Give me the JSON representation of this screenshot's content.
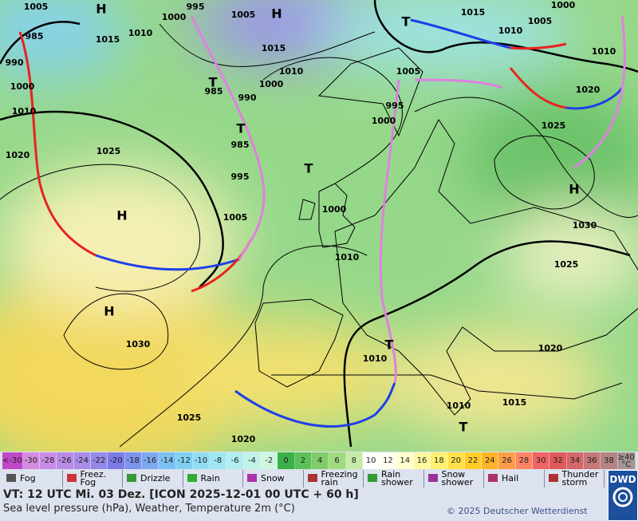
{
  "map": {
    "labels": [
      "H",
      "1005",
      "995",
      "1005",
      "H",
      "1000",
      "1015",
      "1005",
      "1000",
      "T",
      "1010",
      "1010",
      "1015",
      "1010",
      "985",
      "1015",
      "1010",
      "1005",
      "1000",
      "T",
      "985",
      "990",
      "1020",
      "995",
      "1000",
      "1025",
      "T",
      "985",
      "T",
      "1025",
      "1020",
      "995",
      "H",
      "H",
      "1005",
      "1000",
      "1030",
      "1010",
      "1025",
      "H",
      "1030",
      "T",
      "1020",
      "1010",
      "1010",
      "1015",
      "T",
      "1025",
      "1020",
      "1000",
      "1010",
      "990"
    ]
  },
  "scale": {
    "cells": [
      {
        "label": "<-30",
        "color": "#c048c8"
      },
      {
        "label": "-30",
        "color": "#d48ce0"
      },
      {
        "label": "-28",
        "color": "#c88ce4"
      },
      {
        "label": "-26",
        "color": "#b88ce6"
      },
      {
        "label": "-24",
        "color": "#a88ce8"
      },
      {
        "label": "-22",
        "color": "#9488e8"
      },
      {
        "label": "-20",
        "color": "#7c7ce8"
      },
      {
        "label": "-18",
        "color": "#7c94ec"
      },
      {
        "label": "-16",
        "color": "#7caaf0"
      },
      {
        "label": "-14",
        "color": "#7cc0f2"
      },
      {
        "label": "-12",
        "color": "#80d0f2"
      },
      {
        "label": "-10",
        "color": "#90dcf2"
      },
      {
        "label": "-8",
        "color": "#a0e6f2"
      },
      {
        "label": "-6",
        "color": "#b0eef0"
      },
      {
        "label": "-4",
        "color": "#c0f2e8"
      },
      {
        "label": "-2",
        "color": "#d0f6e0"
      },
      {
        "label": "0",
        "color": "#3cb04a"
      },
      {
        "label": "2",
        "color": "#5cc058"
      },
      {
        "label": "4",
        "color": "#80cc68"
      },
      {
        "label": "6",
        "color": "#a0da80"
      },
      {
        "label": "8",
        "color": "#c4eaa8"
      },
      {
        "label": "10",
        "color": "#ffffff"
      },
      {
        "label": "12",
        "color": "#fffff0"
      },
      {
        "label": "14",
        "color": "#ffffcc"
      },
      {
        "label": "16",
        "color": "#fff8a0"
      },
      {
        "label": "18",
        "color": "#fff070"
      },
      {
        "label": "20",
        "color": "#ffe048"
      },
      {
        "label": "22",
        "color": "#ffcc28"
      },
      {
        "label": "24",
        "color": "#ffb428"
      },
      {
        "label": "26",
        "color": "#ff9c48"
      },
      {
        "label": "28",
        "color": "#ff8464"
      },
      {
        "label": "30",
        "color": "#f06464"
      },
      {
        "label": "32",
        "color": "#e05a5a"
      },
      {
        "label": "34",
        "color": "#d46868"
      },
      {
        "label": "36",
        "color": "#c47878"
      },
      {
        "label": "38",
        "color": "#b48484"
      },
      {
        "label": "≥40 °C",
        "color": "#a49494"
      }
    ]
  },
  "legend": [
    "Fog",
    "Freez. Fog",
    "Drizzle",
    "Rain",
    "Snow",
    "Freezing rain",
    "Rain shower",
    "Snow shower",
    "Hail",
    "Thunder storm"
  ],
  "footer": {
    "line1": "VT: 12 UTC Mi.  03 Dez. [ICON 2025-12-01  00 UTC + 60 h]",
    "line2": "Sea level pressure (hPa), Weather, Temperature 2m (°C)",
    "copyright": "© 2025 Deutscher Wetterdienst",
    "logo": "DWD"
  }
}
